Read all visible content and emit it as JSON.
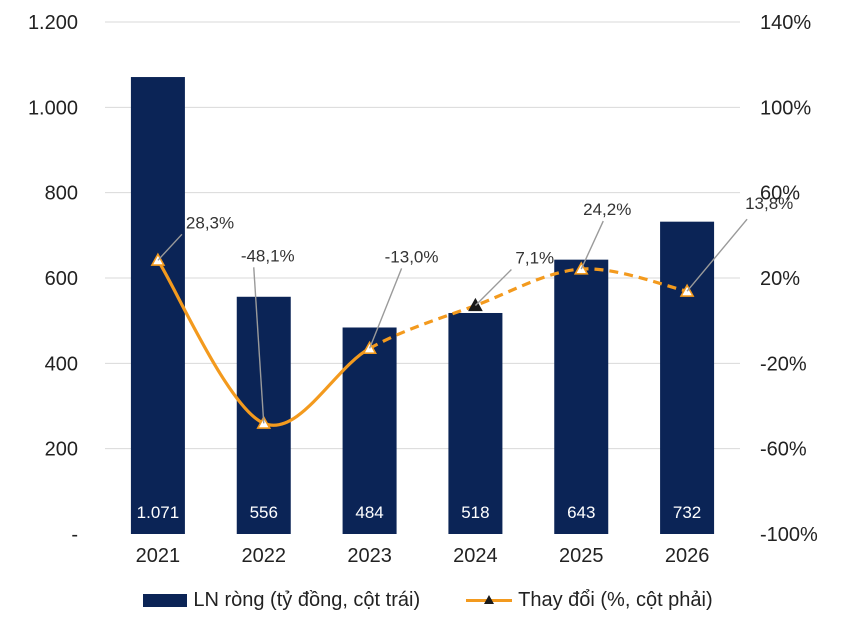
{
  "chart_data": {
    "type": "bar+line",
    "categories": [
      "2021",
      "2022",
      "2023",
      "2024",
      "2025",
      "2026"
    ],
    "series": [
      {
        "name": "LN ròng (tỷ đồng, cột trái)",
        "kind": "bar",
        "axis": "left",
        "values": [
          1071,
          556,
          484,
          518,
          643,
          732
        ],
        "labels": [
          "1.071",
          "556",
          "484",
          "518",
          "643",
          "732"
        ]
      },
      {
        "name": "Thay đổi (%, cột phải)",
        "kind": "line",
        "axis": "right",
        "values": [
          28.3,
          -48.1,
          -13.0,
          7.1,
          24.2,
          13.8
        ],
        "labels": [
          "28,3%",
          "-48,1%",
          "-13,0%",
          "7,1%",
          "24,2%",
          "13,8%"
        ],
        "actual_until_index": 2
      }
    ],
    "left_axis": {
      "ylim": [
        0,
        1200
      ],
      "ticks": [
        0,
        200,
        400,
        600,
        800,
        1000,
        1200
      ],
      "tick_labels": [
        "-",
        "200",
        "400",
        "600",
        "800",
        "1.000",
        "1.200"
      ]
    },
    "right_axis": {
      "ylim": [
        -100,
        140
      ],
      "ticks": [
        -100,
        -60,
        -20,
        20,
        60,
        100,
        140
      ],
      "tick_labels": [
        "-100%",
        "-60%",
        "-20%",
        "20%",
        "60%",
        "100%",
        "140%"
      ]
    },
    "gridlines": true,
    "legend_position": "bottom",
    "colors": {
      "bar": "#0b2456",
      "line": "#f39a1e",
      "grid": "#d9d9d9",
      "leader": "#9a9a9a"
    }
  }
}
